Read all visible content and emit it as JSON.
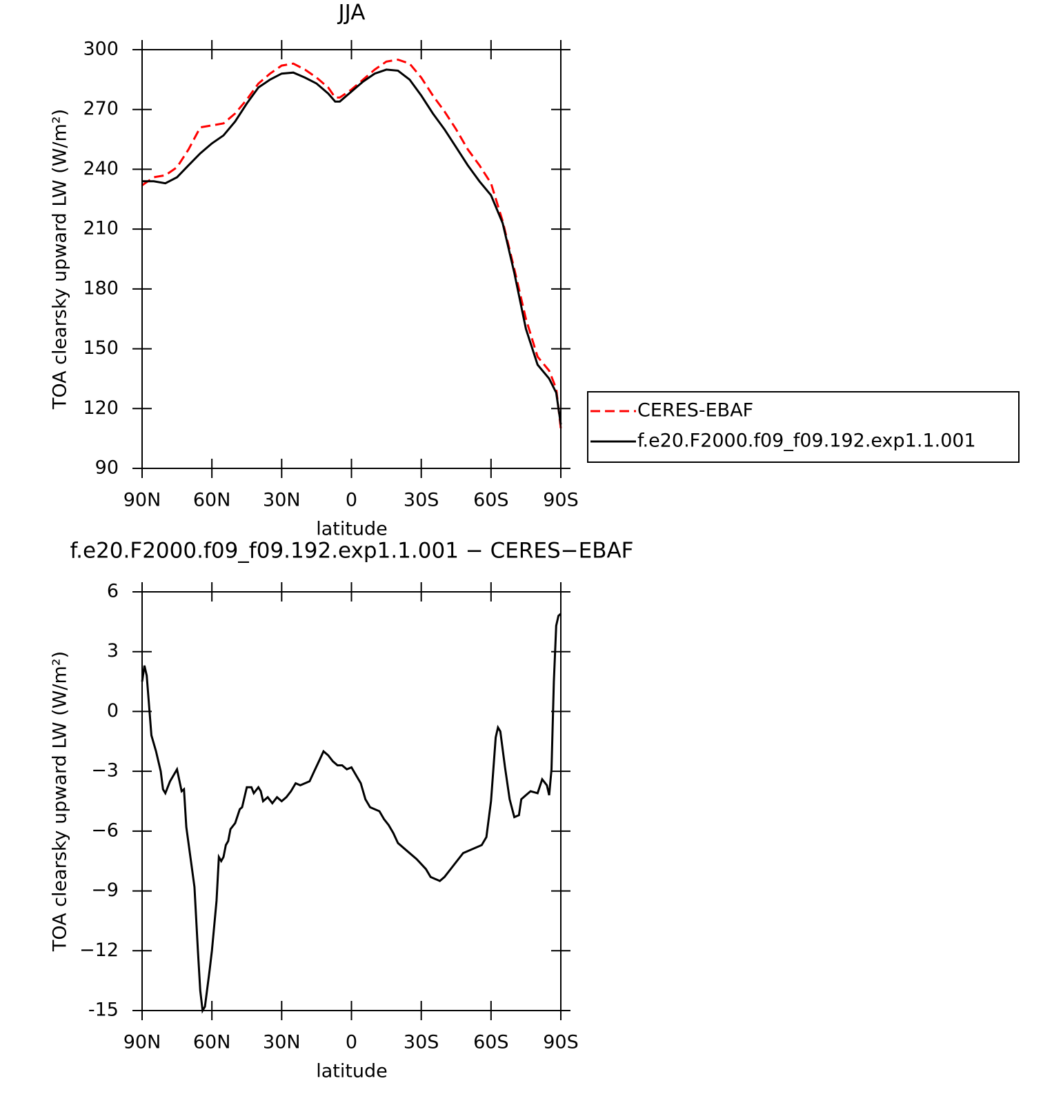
{
  "chart_data": [
    {
      "type": "line",
      "title": "JJA",
      "xlabel": "latitude",
      "ylabel": "TOA clearsky upward LW (W/m²)",
      "x": [
        90,
        85,
        80,
        75,
        70,
        65,
        60,
        55,
        50,
        45,
        40,
        35,
        30,
        25,
        20,
        15,
        10,
        7,
        5,
        0,
        -5,
        -10,
        -15,
        -20,
        -25,
        -30,
        -35,
        -40,
        -45,
        -50,
        -55,
        -60,
        -65,
        -70,
        -75,
        -80,
        -85,
        -88,
        -90
      ],
      "series": [
        {
          "name": "CERES-EBAF",
          "color": "#ff0000",
          "linestyle": "dashed",
          "values": [
            232,
            236,
            237,
            241,
            250,
            261,
            262,
            263,
            268,
            275,
            283,
            288,
            292,
            293,
            290,
            286,
            281,
            276,
            276,
            280,
            285,
            290,
            294,
            295,
            293,
            286,
            277,
            269,
            260,
            250,
            242,
            233,
            214,
            190,
            165,
            146,
            139,
            130,
            110
          ]
        },
        {
          "name": "f.e20.F2000.f09_f09.192.exp1.1.001",
          "color": "#000000",
          "linestyle": "solid",
          "values": [
            234,
            234,
            233,
            236,
            242,
            248,
            253,
            257,
            264,
            273,
            281,
            285,
            288,
            288.5,
            286,
            283,
            278,
            274,
            274,
            279,
            284,
            288,
            290,
            289.5,
            285,
            277,
            268,
            260,
            251,
            242,
            234,
            227,
            213,
            188,
            160,
            142,
            135,
            128,
            112
          ]
        }
      ],
      "xlim": [
        90,
        -90
      ],
      "xticks": [
        {
          "value": 90,
          "label": "90N"
        },
        {
          "value": 60,
          "label": "60N"
        },
        {
          "value": 30,
          "label": "30N"
        },
        0,
        {
          "value": -30,
          "label": "30S"
        },
        {
          "value": -60,
          "label": "60S"
        },
        {
          "value": -90,
          "label": "90S"
        }
      ],
      "ylim": [
        90,
        300
      ],
      "yticks": [
        90,
        120,
        150,
        180,
        210,
        240,
        270,
        300
      ],
      "legend": "right"
    },
    {
      "type": "line",
      "title": "f.e20.F2000.f09_f09.192.exp1.1.001 − CERES−EBAF",
      "xlabel": "latitude",
      "ylabel": "TOA clearsky upward LW (W/m²)",
      "x": [
        90,
        89,
        88,
        86,
        84,
        82,
        81,
        80,
        78,
        75,
        73,
        72,
        71,
        69,
        67.5,
        66,
        65,
        64,
        63,
        61,
        60,
        58,
        57,
        56,
        55,
        54,
        53,
        52,
        50,
        48,
        47,
        46,
        45,
        43,
        42,
        40,
        39,
        38,
        36,
        34,
        32,
        30,
        28,
        26,
        24,
        22,
        20,
        18,
        16,
        14,
        12,
        10,
        8,
        6,
        4,
        2,
        0,
        -2,
        -4,
        -6,
        -8,
        -10,
        -12,
        -14,
        -16,
        -18,
        -20,
        -24,
        -28,
        -32,
        -34,
        -36,
        -38,
        -40,
        -44,
        -48,
        -52,
        -56,
        -58,
        -60,
        -62,
        -63,
        -64,
        -66,
        -68,
        -70,
        -72,
        -73,
        -75,
        -77,
        -80,
        -82,
        -84,
        -85,
        -86,
        -87,
        -88,
        -89,
        -90
      ],
      "series": [
        {
          "color": "#000000",
          "linestyle": "solid",
          "values": [
            1.5,
            2.3,
            1.8,
            -1.2,
            -2,
            -3,
            -3.9,
            -4.1,
            -3.5,
            -2.9,
            -4,
            -3.9,
            -5.8,
            -7.5,
            -8.8,
            -12,
            -14,
            -15,
            -14.8,
            -13,
            -12,
            -9.5,
            -7.3,
            -7.5,
            -7.3,
            -6.7,
            -6.5,
            -5.9,
            -5.6,
            -4.9,
            -4.8,
            -4.3,
            -3.8,
            -3.8,
            -4.1,
            -3.8,
            -4,
            -4.5,
            -4.3,
            -4.6,
            -4.3,
            -4.5,
            -4.3,
            -4,
            -3.6,
            -3.7,
            -3.6,
            -3.5,
            -3,
            -2.5,
            -2,
            -2.2,
            -2.5,
            -2.7,
            -2.7,
            -2.9,
            -2.8,
            -3.2,
            -3.6,
            -4.4,
            -4.8,
            -4.9,
            -5,
            -5.4,
            -5.7,
            -6.1,
            -6.6,
            -7,
            -7.4,
            -7.9,
            -8.3,
            -8.4,
            -8.5,
            -8.3,
            -7.7,
            -7.1,
            -6.9,
            -6.7,
            -6.3,
            -4.5,
            -1.3,
            -0.8,
            -1,
            -2.8,
            -4.4,
            -5.3,
            -5.2,
            -4.4,
            -4.2,
            -4,
            -4.1,
            -3.4,
            -3.7,
            -4.2,
            -2.9,
            1.5,
            4.3,
            4.8,
            4.9
          ]
        }
      ],
      "xlim": [
        90,
        -90
      ],
      "xticks": [
        {
          "value": 90,
          "label": "90N"
        },
        {
          "value": 60,
          "label": "60N"
        },
        {
          "value": 30,
          "label": "30N"
        },
        0,
        {
          "value": -30,
          "label": "30S"
        },
        {
          "value": -60,
          "label": "60S"
        },
        {
          "value": -90,
          "label": "90S"
        }
      ],
      "ylim": [
        -15,
        6
      ],
      "yticks": [
        -15,
        {
          "value": -12,
          "label": "−12"
        },
        {
          "value": -9,
          "label": "−9"
        },
        {
          "value": -6,
          "label": "−6"
        },
        {
          "value": -3,
          "label": "−3"
        },
        0,
        3,
        6
      ]
    }
  ]
}
